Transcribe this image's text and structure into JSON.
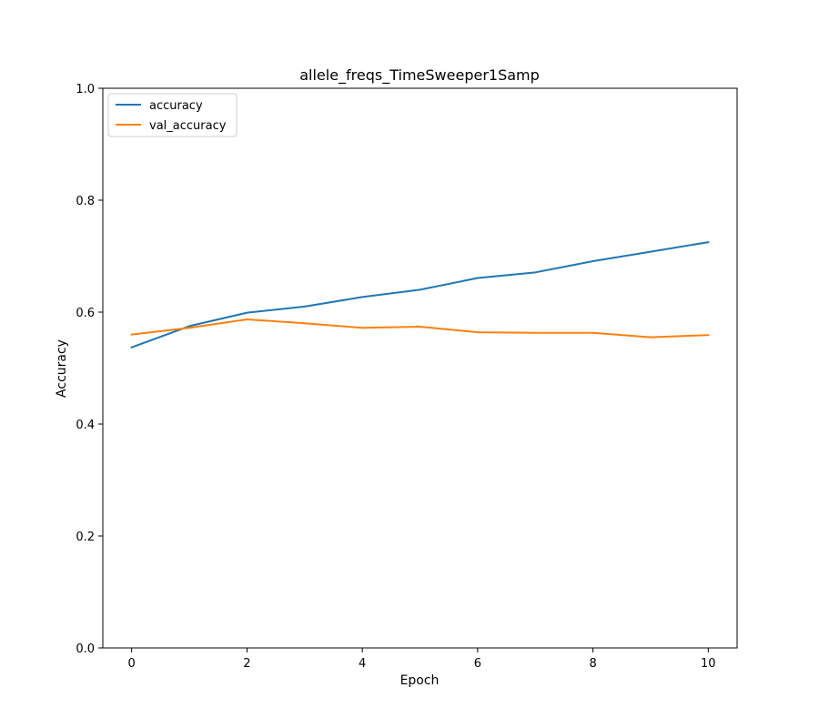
{
  "chart_data": {
    "type": "line",
    "title": "allele_freqs_TimeSweeper1Samp",
    "xlabel": "Epoch",
    "ylabel": "Accuracy",
    "xlim": [
      -0.5,
      10.5
    ],
    "ylim": [
      0.0,
      1.0
    ],
    "xticks": [
      0,
      2,
      4,
      6,
      8,
      10
    ],
    "yticks": [
      0.0,
      0.2,
      0.4,
      0.6,
      0.8,
      1.0
    ],
    "xtick_labels": [
      "0",
      "2",
      "4",
      "6",
      "8",
      "10"
    ],
    "ytick_labels": [
      "0.0",
      "0.2",
      "0.4",
      "0.6",
      "0.8",
      "1.0"
    ],
    "grid": false,
    "legend_position": "top-left",
    "x": [
      0,
      1,
      2,
      3,
      4,
      5,
      6,
      7,
      8,
      9,
      10
    ],
    "series": [
      {
        "name": "accuracy",
        "color": "#1f77b4",
        "values": [
          0.537,
          0.575,
          0.599,
          0.61,
          0.627,
          0.64,
          0.661,
          0.671,
          0.691,
          0.708,
          0.725
        ]
      },
      {
        "name": "val_accuracy",
        "color": "#ff7f0e",
        "values": [
          0.56,
          0.572,
          0.587,
          0.58,
          0.572,
          0.574,
          0.564,
          0.563,
          0.563,
          0.555,
          0.559
        ]
      }
    ]
  }
}
